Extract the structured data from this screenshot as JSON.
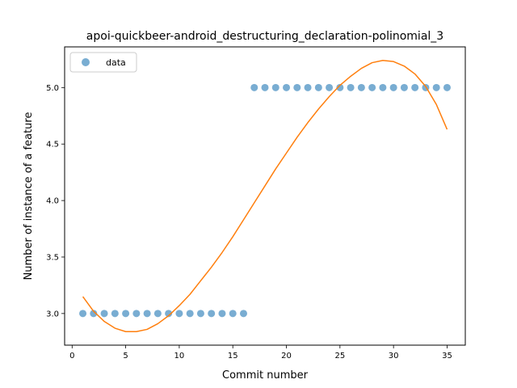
{
  "chart_data": {
    "type": "scatter",
    "title": "apoi-quickbeer-android_destructuring_declaration-polinomial_3",
    "xlabel": "Commit number",
    "ylabel": "Number of instance of a feature",
    "xlim": [
      -0.7,
      36.7
    ],
    "ylim": [
      2.72,
      5.36
    ],
    "xticks": [
      0,
      5,
      10,
      15,
      20,
      25,
      30,
      35
    ],
    "xtick_labels": [
      "0",
      "5",
      "10",
      "15",
      "20",
      "25",
      "30",
      "35"
    ],
    "yticks": [
      3.0,
      3.5,
      4.0,
      4.5,
      5.0
    ],
    "ytick_labels": [
      "3.0",
      "3.5",
      "4.0",
      "4.5",
      "5.0"
    ],
    "grid": false,
    "legend_position": "top-left",
    "series": [
      {
        "name": "data",
        "kind": "scatter",
        "color": "#1f77b4",
        "x": [
          1,
          2,
          3,
          4,
          5,
          6,
          7,
          8,
          9,
          10,
          11,
          12,
          13,
          14,
          15,
          16,
          17,
          18,
          19,
          20,
          21,
          22,
          23,
          24,
          25,
          26,
          27,
          28,
          29,
          30,
          31,
          32,
          33,
          34,
          35
        ],
        "y": [
          3,
          3,
          3,
          3,
          3,
          3,
          3,
          3,
          3,
          3,
          3,
          3,
          3,
          3,
          3,
          3,
          5,
          5,
          5,
          5,
          5,
          5,
          5,
          5,
          5,
          5,
          5,
          5,
          5,
          5,
          5,
          5,
          5,
          5,
          5
        ]
      },
      {
        "kind": "line",
        "color": "#ff7f0e",
        "x": [
          1,
          2,
          3,
          4,
          5,
          6,
          7,
          8,
          9,
          10,
          11,
          12,
          13,
          14,
          15,
          16,
          17,
          18,
          19,
          20,
          21,
          22,
          23,
          24,
          25,
          26,
          27,
          28,
          29,
          30,
          31,
          32,
          33,
          34,
          35
        ],
        "y": [
          3.15,
          3.02,
          2.93,
          2.87,
          2.84,
          2.84,
          2.86,
          2.91,
          2.98,
          3.07,
          3.17,
          3.29,
          3.41,
          3.54,
          3.68,
          3.83,
          3.98,
          4.13,
          4.28,
          4.42,
          4.56,
          4.69,
          4.81,
          4.92,
          5.02,
          5.1,
          5.17,
          5.22,
          5.24,
          5.23,
          5.19,
          5.12,
          5.01,
          4.85,
          4.63
        ]
      }
    ]
  }
}
